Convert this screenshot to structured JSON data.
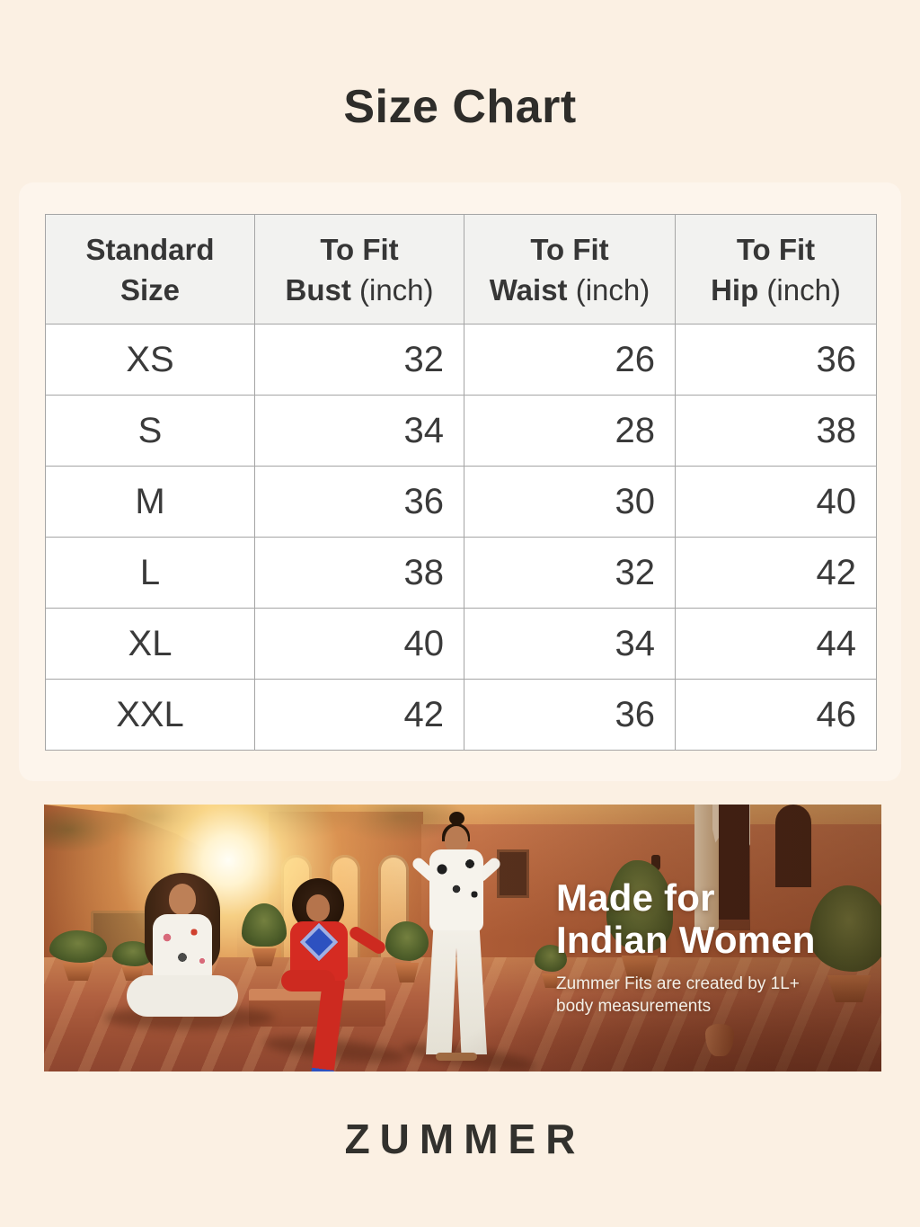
{
  "title": "Size Chart",
  "table": {
    "headers": [
      {
        "line1": "Standard",
        "measure": "Size",
        "unit": ""
      },
      {
        "line1": "To Fit",
        "measure": "Bust",
        "unit": "(inch)"
      },
      {
        "line1": "To Fit",
        "measure": "Waist",
        "unit": "(inch)"
      },
      {
        "line1": "To Fit",
        "measure": "Hip",
        "unit": "(inch)"
      }
    ],
    "rows": [
      [
        "XS",
        "32",
        "26",
        "36"
      ],
      [
        "S",
        "34",
        "28",
        "38"
      ],
      [
        "M",
        "36",
        "30",
        "40"
      ],
      [
        "L",
        "38",
        "32",
        "42"
      ],
      [
        "XL",
        "40",
        "34",
        "44"
      ],
      [
        "XXL",
        "42",
        "36",
        "46"
      ]
    ]
  },
  "chart_data": {
    "type": "table",
    "columns": [
      "Standard Size",
      "To Fit Bust (inch)",
      "To Fit Waist (inch)",
      "To Fit Hip (inch)"
    ],
    "rows": [
      [
        "XS",
        32,
        26,
        36
      ],
      [
        "S",
        34,
        28,
        38
      ],
      [
        "M",
        36,
        30,
        40
      ],
      [
        "L",
        38,
        32,
        42
      ],
      [
        "XL",
        40,
        34,
        44
      ],
      [
        "XXL",
        42,
        36,
        46
      ]
    ]
  },
  "banner": {
    "headline_line1": "Made for",
    "headline_line2": "Indian Women",
    "subtext_line1": "Zummer Fits are created by 1L+",
    "subtext_line2": "body measurements"
  },
  "brand": "ZUMMER",
  "colors": {
    "background": "#fbf0e3",
    "panel": "#fdf5ec",
    "table_border": "#a5a5a5",
    "header_bg": "#f2f2f0",
    "text_dark": "#363636",
    "banner_wall": "#b2613a",
    "outfit_red": "#d52b22",
    "outfit_blue": "#2d51c0",
    "brand_text": "#32312d"
  }
}
